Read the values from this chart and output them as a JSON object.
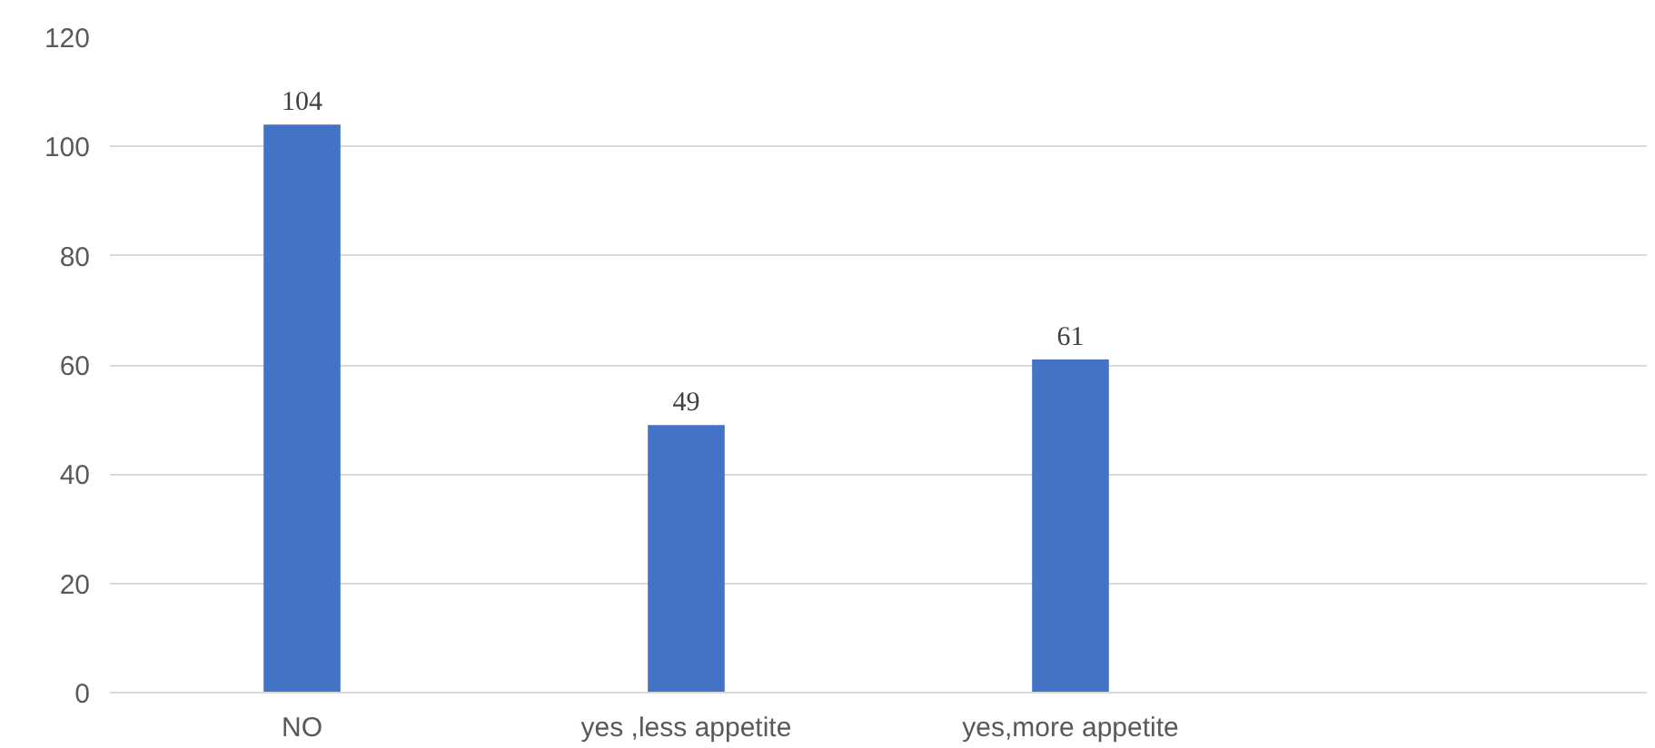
{
  "chart_data": {
    "type": "bar",
    "categories": [
      "NO",
      "yes ,less appetite",
      "yes,more appetite",
      null
    ],
    "values": [
      104,
      49,
      61,
      null
    ],
    "color": "#4472c4",
    "ylim": [
      0,
      120
    ],
    "yticks": [
      0,
      20,
      40,
      60,
      80,
      100,
      120
    ],
    "grid": "y",
    "data_labels": true
  }
}
